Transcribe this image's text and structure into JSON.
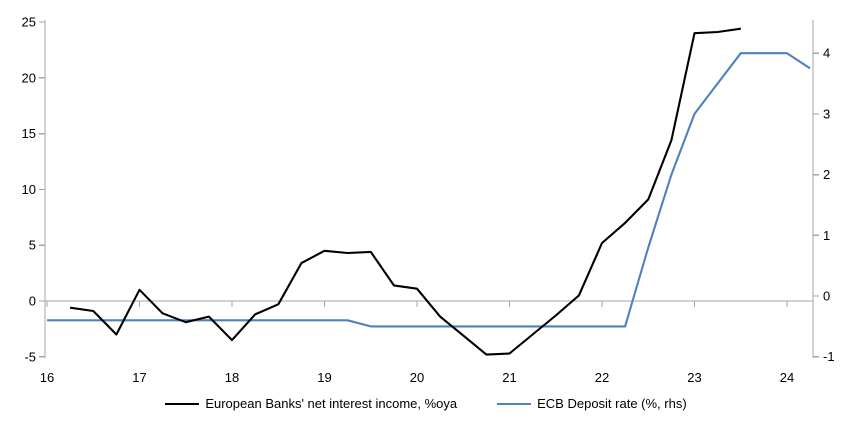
{
  "chart_data": {
    "type": "line",
    "title": "",
    "xlabel": "",
    "ylabel_left": "",
    "ylabel_right": "",
    "x_axis": {
      "ticks": [
        16,
        17,
        18,
        19,
        20,
        21,
        22,
        23,
        24
      ],
      "range": [
        16,
        24.3
      ]
    },
    "left_axis": {
      "ticks": [
        25,
        20,
        15,
        10,
        5,
        0,
        -5
      ],
      "range": [
        -5.2,
        25.2
      ]
    },
    "right_axis": {
      "ticks": [
        4,
        3,
        2,
        1,
        0,
        -1
      ],
      "range": [
        -1.05,
        4.55
      ]
    },
    "grid": "zero-line-only",
    "legend_position": "bottom",
    "series": [
      {
        "name": "European Banks' net interest income, %oya",
        "axis": "left",
        "color": "#000000",
        "x": [
          16.25,
          16.5,
          16.75,
          17,
          17.25,
          17.5,
          17.75,
          18,
          18.25,
          18.5,
          18.75,
          19,
          19.25,
          19.5,
          19.75,
          20,
          20.25,
          20.5,
          20.75,
          21,
          21.25,
          21.5,
          21.75,
          22,
          22.25,
          22.5,
          22.75,
          23,
          23.25,
          23.5
        ],
        "values": [
          -0.6,
          -0.9,
          -3.0,
          1.0,
          -1.1,
          -1.9,
          -1.4,
          -3.5,
          -1.2,
          -0.3,
          3.4,
          4.5,
          4.3,
          4.4,
          1.4,
          1.1,
          -1.4,
          -3.1,
          -4.8,
          -4.7,
          -3.0,
          -1.3,
          0.5,
          5.2,
          7.0,
          9.1,
          14.4,
          24.0,
          24.1,
          24.4
        ]
      },
      {
        "name": "ECB Deposit rate (%, rhs)",
        "axis": "right",
        "color": "#4f81bd",
        "x": [
          16,
          16.25,
          16.5,
          16.75,
          17,
          17.25,
          17.5,
          17.75,
          18,
          18.25,
          18.5,
          18.75,
          19,
          19.25,
          19.5,
          19.75,
          20,
          20.25,
          20.5,
          20.75,
          21,
          21.25,
          21.5,
          21.75,
          22,
          22.25,
          22.5,
          22.75,
          23,
          23.25,
          23.5,
          23.75,
          24,
          24.25
        ],
        "values": [
          -0.4,
          -0.4,
          -0.4,
          -0.4,
          -0.4,
          -0.4,
          -0.4,
          -0.4,
          -0.4,
          -0.4,
          -0.4,
          -0.4,
          -0.4,
          -0.4,
          -0.5,
          -0.5,
          -0.5,
          -0.5,
          -0.5,
          -0.5,
          -0.5,
          -0.5,
          -0.5,
          -0.5,
          -0.5,
          -0.5,
          0.8,
          2.0,
          3.0,
          3.5,
          4.0,
          4.0,
          4.0,
          3.75
        ]
      }
    ]
  },
  "colors": {
    "background": "#ffffff",
    "axis_line": "#a6a6a6",
    "zero_line": "#a6a6a6",
    "tick_label": "#000000",
    "series_nii": "#000000",
    "series_ecb": "#4f81bd"
  }
}
